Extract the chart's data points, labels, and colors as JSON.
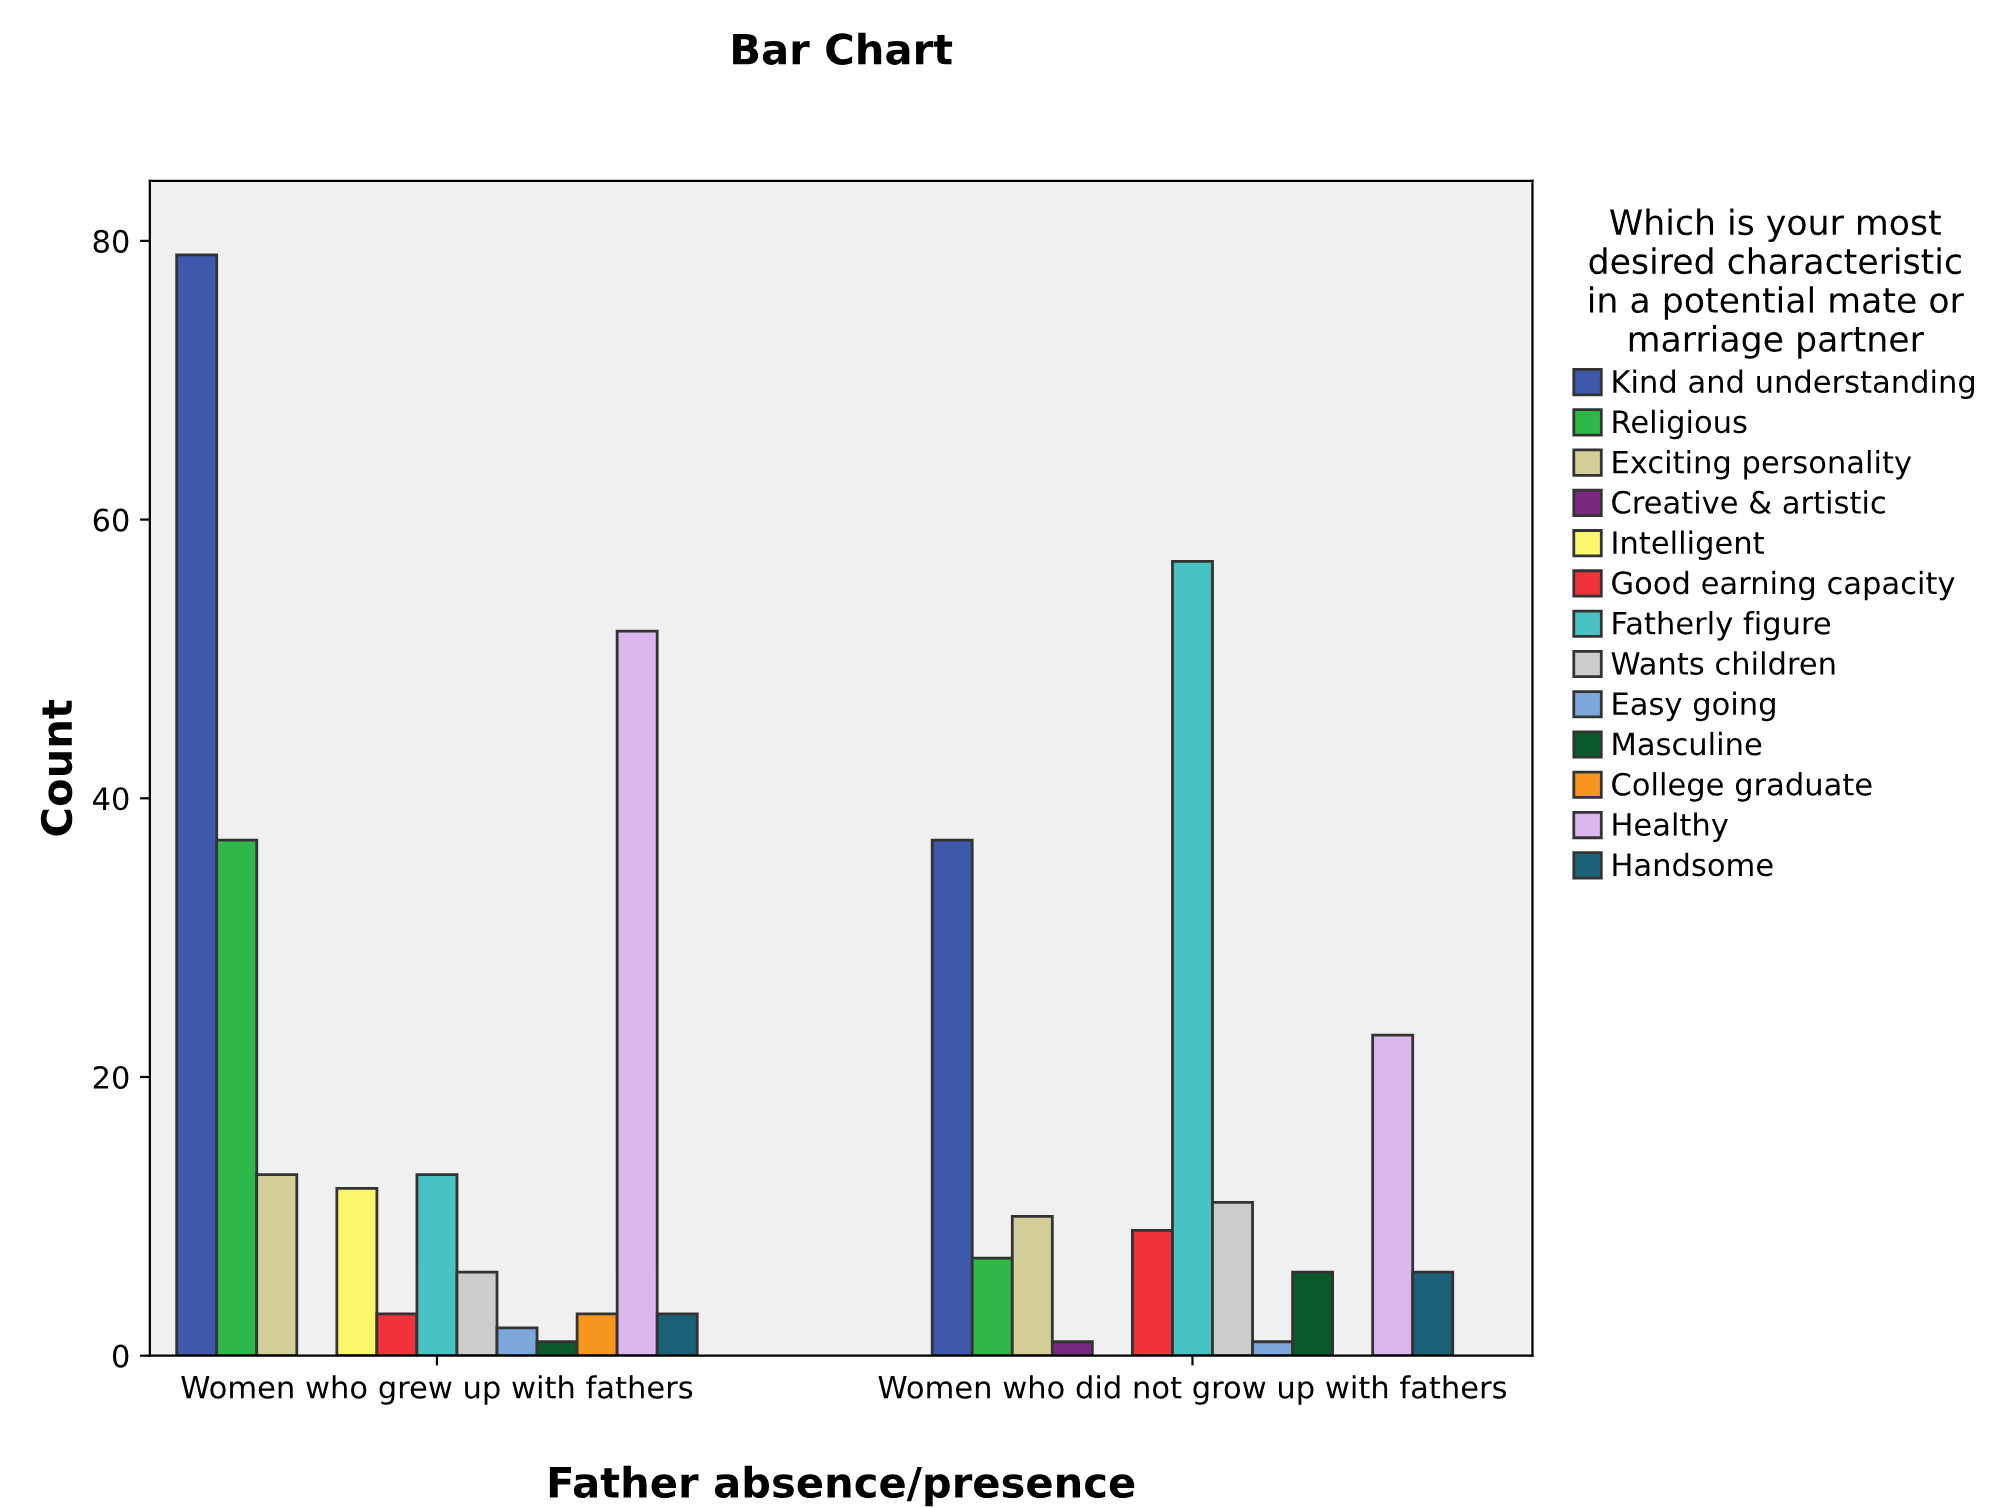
{
  "chart_data": {
    "type": "bar",
    "title": "Bar Chart",
    "xlabel": "Father absence/presence",
    "ylabel": "Count",
    "legend_title": "Which is your most\ndesired characteristic\nin a potential mate or\nmarriage partner",
    "categories": [
      "Women who grew up with fathers",
      "Women who did not grow up with fathers"
    ],
    "series": [
      {
        "name": "Kind and understanding",
        "color": "#3e58ac",
        "values": [
          79,
          37
        ]
      },
      {
        "name": "Religious",
        "color": "#2fb84a",
        "values": [
          37,
          7
        ]
      },
      {
        "name": "Exciting personality",
        "color": "#d3ce97",
        "values": [
          13,
          10
        ]
      },
      {
        "name": "Creative & artistic",
        "color": "#79287f",
        "values": [
          null,
          1
        ]
      },
      {
        "name": "Intelligent",
        "color": "#fbf66a",
        "values": [
          12,
          null
        ]
      },
      {
        "name": "Good earning capacity",
        "color": "#f0323a",
        "values": [
          3,
          9
        ]
      },
      {
        "name": "Fatherly figure",
        "color": "#48c2c5",
        "values": [
          13,
          57
        ]
      },
      {
        "name": "Wants children",
        "color": "#cccccc",
        "values": [
          6,
          11
        ]
      },
      {
        "name": "Easy going",
        "color": "#7ba7da",
        "values": [
          2,
          1
        ]
      },
      {
        "name": "Masculine",
        "color": "#0b5a2b",
        "values": [
          1,
          6
        ]
      },
      {
        "name": "College graduate",
        "color": "#f7961e",
        "values": [
          3,
          null
        ]
      },
      {
        "name": "Healthy",
        "color": "#dcb6ef",
        "values": [
          52,
          23
        ]
      },
      {
        "name": "Handsome",
        "color": "#1b6177",
        "values": [
          3,
          6
        ]
      }
    ],
    "ylim": [
      0,
      84.3
    ],
    "yticks": [
      0,
      20,
      40,
      60,
      80
    ],
    "grid": false,
    "legend": "right"
  }
}
